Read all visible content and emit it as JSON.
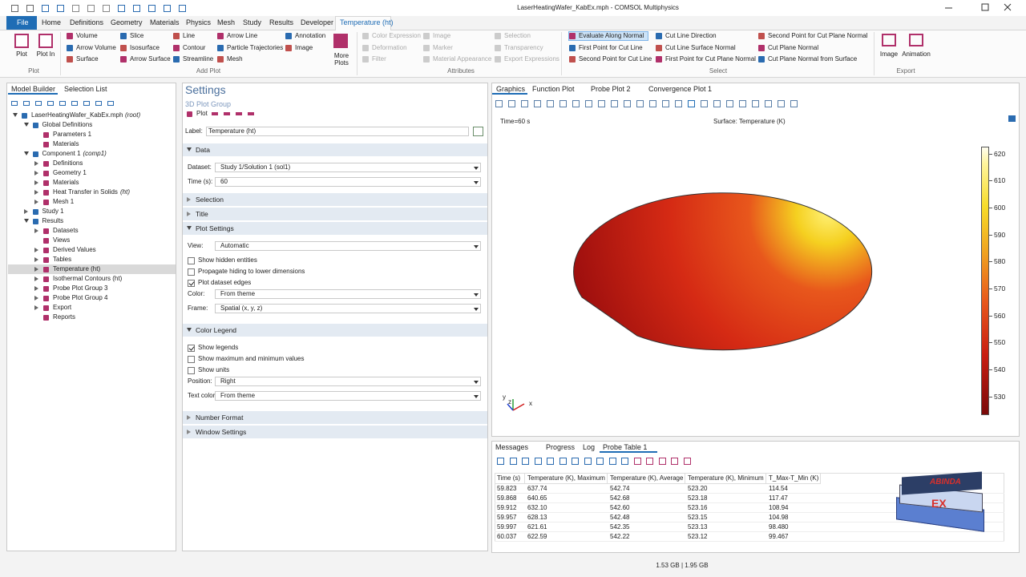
{
  "window": {
    "title": "LaserHeatingWafer_KabEx.mph - COMSOL Multiphysics"
  },
  "menu": {
    "file": "File",
    "tabs": [
      "Home",
      "Definitions",
      "Geometry",
      "Materials",
      "Physics",
      "Mesh",
      "Study",
      "Results",
      "Developer",
      "Temperature (ht)"
    ]
  },
  "ribbon": {
    "plot": {
      "label": "Plot",
      "buttons": [
        "Plot",
        "Plot In"
      ]
    },
    "add_plot": {
      "label": "Add Plot",
      "columns": [
        [
          "Volume",
          "Arrow Volume",
          "Surface"
        ],
        [
          "Slice",
          "Isosurface",
          "Arrow Surface"
        ],
        [
          "Line",
          "Contour",
          "Streamline"
        ],
        [
          "Arrow Line",
          "Particle Trajectories",
          "Mesh"
        ],
        [
          "Annotation",
          "Image"
        ]
      ],
      "more": "More Plots"
    },
    "attributes": {
      "label": "Attributes",
      "columns": [
        [
          "Color Expression",
          "Deformation",
          "Filter"
        ],
        [
          "Image",
          "Marker",
          "Material Appearance"
        ],
        [
          "Selection",
          "Transparency",
          "Export Expressions"
        ]
      ]
    },
    "select": {
      "label": "Select",
      "columns": [
        [
          "Evaluate Along Normal",
          "First Point for Cut Line",
          "Second Point for Cut Line"
        ],
        [
          "Cut Line Direction",
          "Cut Line Surface Normal",
          "First Point for Cut Plane Normal"
        ],
        [
          "Second Point for Cut Plane Normal",
          "Cut Plane Normal",
          "Cut Plane Normal from Surface"
        ]
      ]
    },
    "export": {
      "label": "Export",
      "buttons": [
        "Image",
        "Animation"
      ]
    }
  },
  "model_builder": {
    "tabs": [
      "Model Builder",
      "Selection List"
    ],
    "tree": [
      {
        "label": "LaserHeatingWafer_KabEx.mph",
        "note": "(root)",
        "children": [
          {
            "label": "Global Definitions",
            "children": [
              {
                "label": "Parameters 1"
              },
              {
                "label": "Materials"
              }
            ]
          },
          {
            "label": "Component 1",
            "note": "(comp1)",
            "children": [
              {
                "label": "Definitions",
                "collapsed": true
              },
              {
                "label": "Geometry 1",
                "collapsed": true
              },
              {
                "label": "Materials",
                "collapsed": true
              },
              {
                "label": "Heat Transfer in Solids",
                "note": "(ht)",
                "collapsed": true
              },
              {
                "label": "Mesh 1",
                "collapsed": true
              }
            ]
          },
          {
            "label": "Study 1",
            "collapsed": true
          },
          {
            "label": "Results",
            "children": [
              {
                "label": "Datasets",
                "collapsed": true
              },
              {
                "label": "Views"
              },
              {
                "label": "Derived Values",
                "collapsed": true
              },
              {
                "label": "Tables",
                "collapsed": true
              },
              {
                "label": "Temperature (ht)",
                "collapsed": true,
                "selected": true
              },
              {
                "label": "Isothermal Contours (ht)",
                "collapsed": true
              },
              {
                "label": "Probe Plot Group 3",
                "collapsed": true
              },
              {
                "label": "Probe Plot Group 4",
                "collapsed": true
              },
              {
                "label": "Export",
                "collapsed": true
              },
              {
                "label": "Reports"
              }
            ]
          }
        ]
      }
    ]
  },
  "settings": {
    "title": "Settings",
    "subtitle": "3D Plot Group",
    "plot_button": "Plot",
    "label_field": {
      "label": "Label:",
      "value": "Temperature (ht)"
    },
    "sections": [
      {
        "title": "Data",
        "expanded": true,
        "items": [
          {
            "label": "Dataset:",
            "value": "Study 1/Solution 1 (sol1)"
          },
          {
            "label": "Time (s):",
            "value": "60"
          }
        ]
      },
      {
        "title": "Selection"
      },
      {
        "title": "Title"
      },
      {
        "title": "Plot Settings",
        "expanded": true,
        "items": [
          {
            "label": "View:",
            "value": "Automatic"
          },
          {
            "check": "Show hidden entities",
            "checked": false
          },
          {
            "check": "Propagate hiding to lower dimensions",
            "checked": false
          },
          {
            "check": "Plot dataset edges",
            "checked": true
          },
          {
            "label": "Color:",
            "value": "From theme"
          },
          {
            "label": "Frame:",
            "value": "Spatial  (x, y, z)"
          }
        ]
      },
      {
        "title": "Color Legend",
        "expanded": true,
        "items": [
          {
            "check": "Show legends",
            "checked": true
          },
          {
            "check": "Show maximum and minimum values",
            "checked": false
          },
          {
            "check": "Show units",
            "checked": false
          },
          {
            "label": "Position:",
            "value": "Right"
          },
          {
            "label": "Text color:",
            "value": "From theme"
          }
        ]
      },
      {
        "title": "Number Format"
      },
      {
        "title": "Window Settings"
      }
    ]
  },
  "graphics": {
    "tabs": [
      "Graphics",
      "Function Plot",
      "Probe Plot 2",
      "Convergence Plot 1"
    ],
    "time_label": "Time=60 s",
    "plot_title": "Surface: Temperature (K)",
    "axes": [
      "y",
      "z",
      "x"
    ],
    "color_legend": {
      "range": [
        523.12,
        622.59
      ],
      "ticks": [
        620,
        610,
        600,
        590,
        580,
        570,
        560,
        550,
        540,
        530
      ]
    }
  },
  "results": {
    "tabs": [
      "Messages",
      "Progress",
      "Log",
      "Probe Table 1"
    ],
    "table": {
      "headers": [
        "Time (s)",
        "Temperature (K), Maximum",
        "Temperature (K), Average",
        "Temperature (K), Minimum",
        "T_Max-T_Min (K)"
      ],
      "rows": [
        [
          "59.823",
          "637.74",
          "542.74",
          "523.20",
          "114.54"
        ],
        [
          "59.868",
          "640.65",
          "542.68",
          "523.18",
          "117.47"
        ],
        [
          "59.912",
          "632.10",
          "542.60",
          "523.16",
          "108.94"
        ],
        [
          "59.957",
          "628.13",
          "542.48",
          "523.15",
          "104.98"
        ],
        [
          "59.997",
          "621.61",
          "542.35",
          "523.13",
          "98.480"
        ],
        [
          "60.037",
          "622.59",
          "542.22",
          "523.12",
          "99.467"
        ]
      ]
    }
  },
  "logo": {
    "top": "ABINDA",
    "bottom": "EX"
  },
  "status": {
    "memory": "1.53 GB | 1.95 GB"
  }
}
